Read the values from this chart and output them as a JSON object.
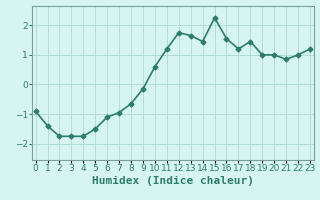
{
  "x": [
    0,
    1,
    2,
    3,
    4,
    5,
    6,
    7,
    8,
    9,
    10,
    11,
    12,
    13,
    14,
    15,
    16,
    17,
    18,
    19,
    20,
    21,
    22,
    23
  ],
  "y": [
    -0.9,
    -1.4,
    -1.75,
    -1.75,
    -1.75,
    -1.5,
    -1.1,
    -0.95,
    -0.65,
    -0.15,
    0.6,
    1.2,
    1.75,
    1.65,
    1.45,
    2.25,
    1.55,
    1.2,
    1.45,
    1.0,
    1.0,
    0.85,
    1.0,
    1.2
  ],
  "line_color": "#2d7d6e",
  "marker": "D",
  "marker_size": 2.5,
  "bg_color": "#d6f5f0",
  "grid_color": "#b0ddd5",
  "spine_color": "#7a9e9a",
  "xlabel": "Humidex (Indice chaleur)",
  "xlabel_fontsize": 8,
  "xlabel_color": "#2d7d6e",
  "ylabel_ticks": [
    -2,
    -1,
    0,
    1,
    2
  ],
  "xtick_labels": [
    "0",
    "1",
    "2",
    "3",
    "4",
    "5",
    "6",
    "7",
    "8",
    "9",
    "10",
    "11",
    "12",
    "13",
    "14",
    "15",
    "16",
    "17",
    "18",
    "19",
    "20",
    "21",
    "22",
    "23"
  ],
  "ylim": [
    -2.55,
    2.65
  ],
  "xlim": [
    -0.3,
    23.3
  ],
  "tick_color": "#2d7d6e",
  "tick_fontsize": 6.5,
  "linewidth": 1.2
}
